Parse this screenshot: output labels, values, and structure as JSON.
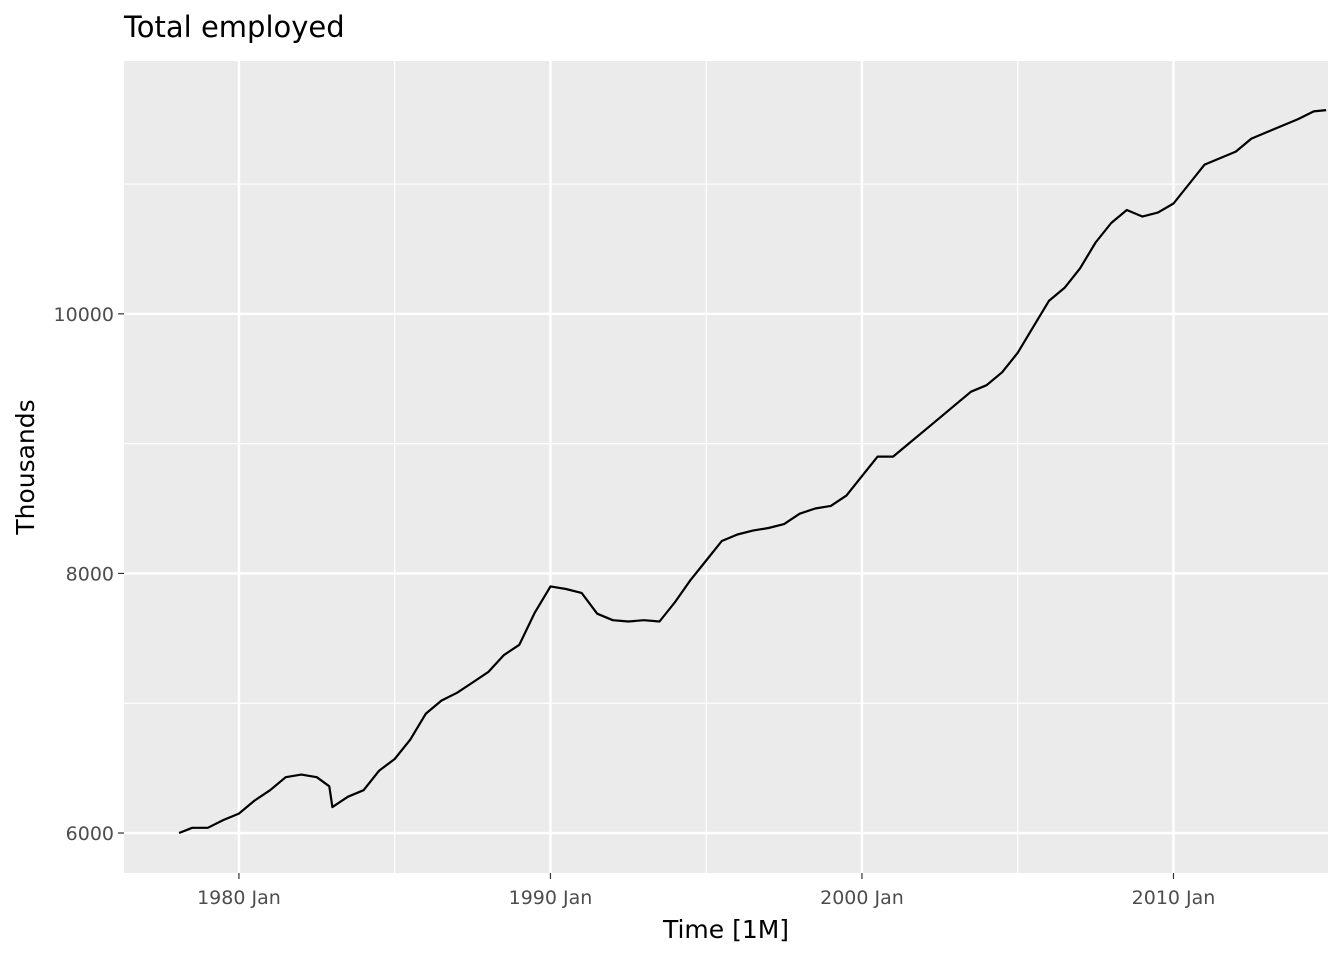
{
  "chart_data": {
    "type": "line",
    "title": "Total employed",
    "xlabel": "Time [1M]",
    "ylabel": "Thousands",
    "x_range": [
      "1978 Feb",
      "2014 Dec"
    ],
    "xlim": [
      1976.31,
      2014.96
    ],
    "ylim": [
      5692,
      11948
    ],
    "x_ticks": [
      {
        "value": 1980,
        "label": "1980 Jan"
      },
      {
        "value": 1990,
        "label": "1990 Jan"
      },
      {
        "value": 2000,
        "label": "2000 Jan"
      },
      {
        "value": 2010,
        "label": "2010 Jan"
      }
    ],
    "x_minor_ticks": [
      1985,
      1995,
      2005,
      2015
    ],
    "y_ticks": [
      {
        "value": 6000,
        "label": "6000"
      },
      {
        "value": 8000,
        "label": "8000"
      },
      {
        "value": 10000,
        "label": "10000"
      }
    ],
    "y_minor_ticks": [
      7000,
      9000,
      11000
    ],
    "grid": true,
    "background": "#ebebeb",
    "line_color": "#000000",
    "series": [
      {
        "x": [
          1978.08,
          1978.5,
          1979.0,
          1979.5,
          1980.0,
          1980.5,
          1981.0,
          1981.5,
          1982.0,
          1982.5,
          1982.9,
          1983.0,
          1983.5,
          1984.0,
          1984.5,
          1985.0,
          1985.5,
          1986.0,
          1986.5,
          1987.0,
          1987.5,
          1988.0,
          1988.5,
          1989.0,
          1989.5,
          1990.0,
          1990.5,
          1991.0,
          1991.5,
          1992.0,
          1992.5,
          1993.0,
          1993.5,
          1994.0,
          1994.5,
          1995.0,
          1995.5,
          1996.0,
          1996.5,
          1997.0,
          1997.5,
          1998.0,
          1998.5,
          1999.0,
          1999.5,
          2000.0,
          2000.5,
          2001.0,
          2001.5,
          2002.0,
          2002.5,
          2003.0,
          2003.5,
          2004.0,
          2004.5,
          2005.0,
          2005.5,
          2006.0,
          2006.5,
          2007.0,
          2007.5,
          2008.0,
          2008.5,
          2009.0,
          2009.5,
          2010.0,
          2010.5,
          2011.0,
          2011.5,
          2012.0,
          2012.5,
          2013.0,
          2013.5,
          2014.0,
          2014.5,
          2014.9
        ],
        "values": [
          6000,
          6040,
          6040,
          6100,
          6150,
          6250,
          6330,
          6430,
          6450,
          6430,
          6360,
          6200,
          6280,
          6330,
          6480,
          6570,
          6720,
          6920,
          7020,
          7080,
          7160,
          7240,
          7370,
          7450,
          7700,
          7900,
          7880,
          7850,
          7690,
          7640,
          7630,
          7640,
          7630,
          7780,
          7950,
          8100,
          8250,
          8300,
          8330,
          8350,
          8380,
          8460,
          8500,
          8520,
          8600,
          8750,
          8900,
          8900,
          9000,
          9100,
          9200,
          9300,
          9400,
          9450,
          9550,
          9700,
          9900,
          10100,
          10200,
          10350,
          10550,
          10700,
          10800,
          10750,
          10780,
          10850,
          11000,
          11150,
          11200,
          11250,
          11350,
          11400,
          11450,
          11500,
          11560,
          11570
        ]
      }
    ]
  }
}
